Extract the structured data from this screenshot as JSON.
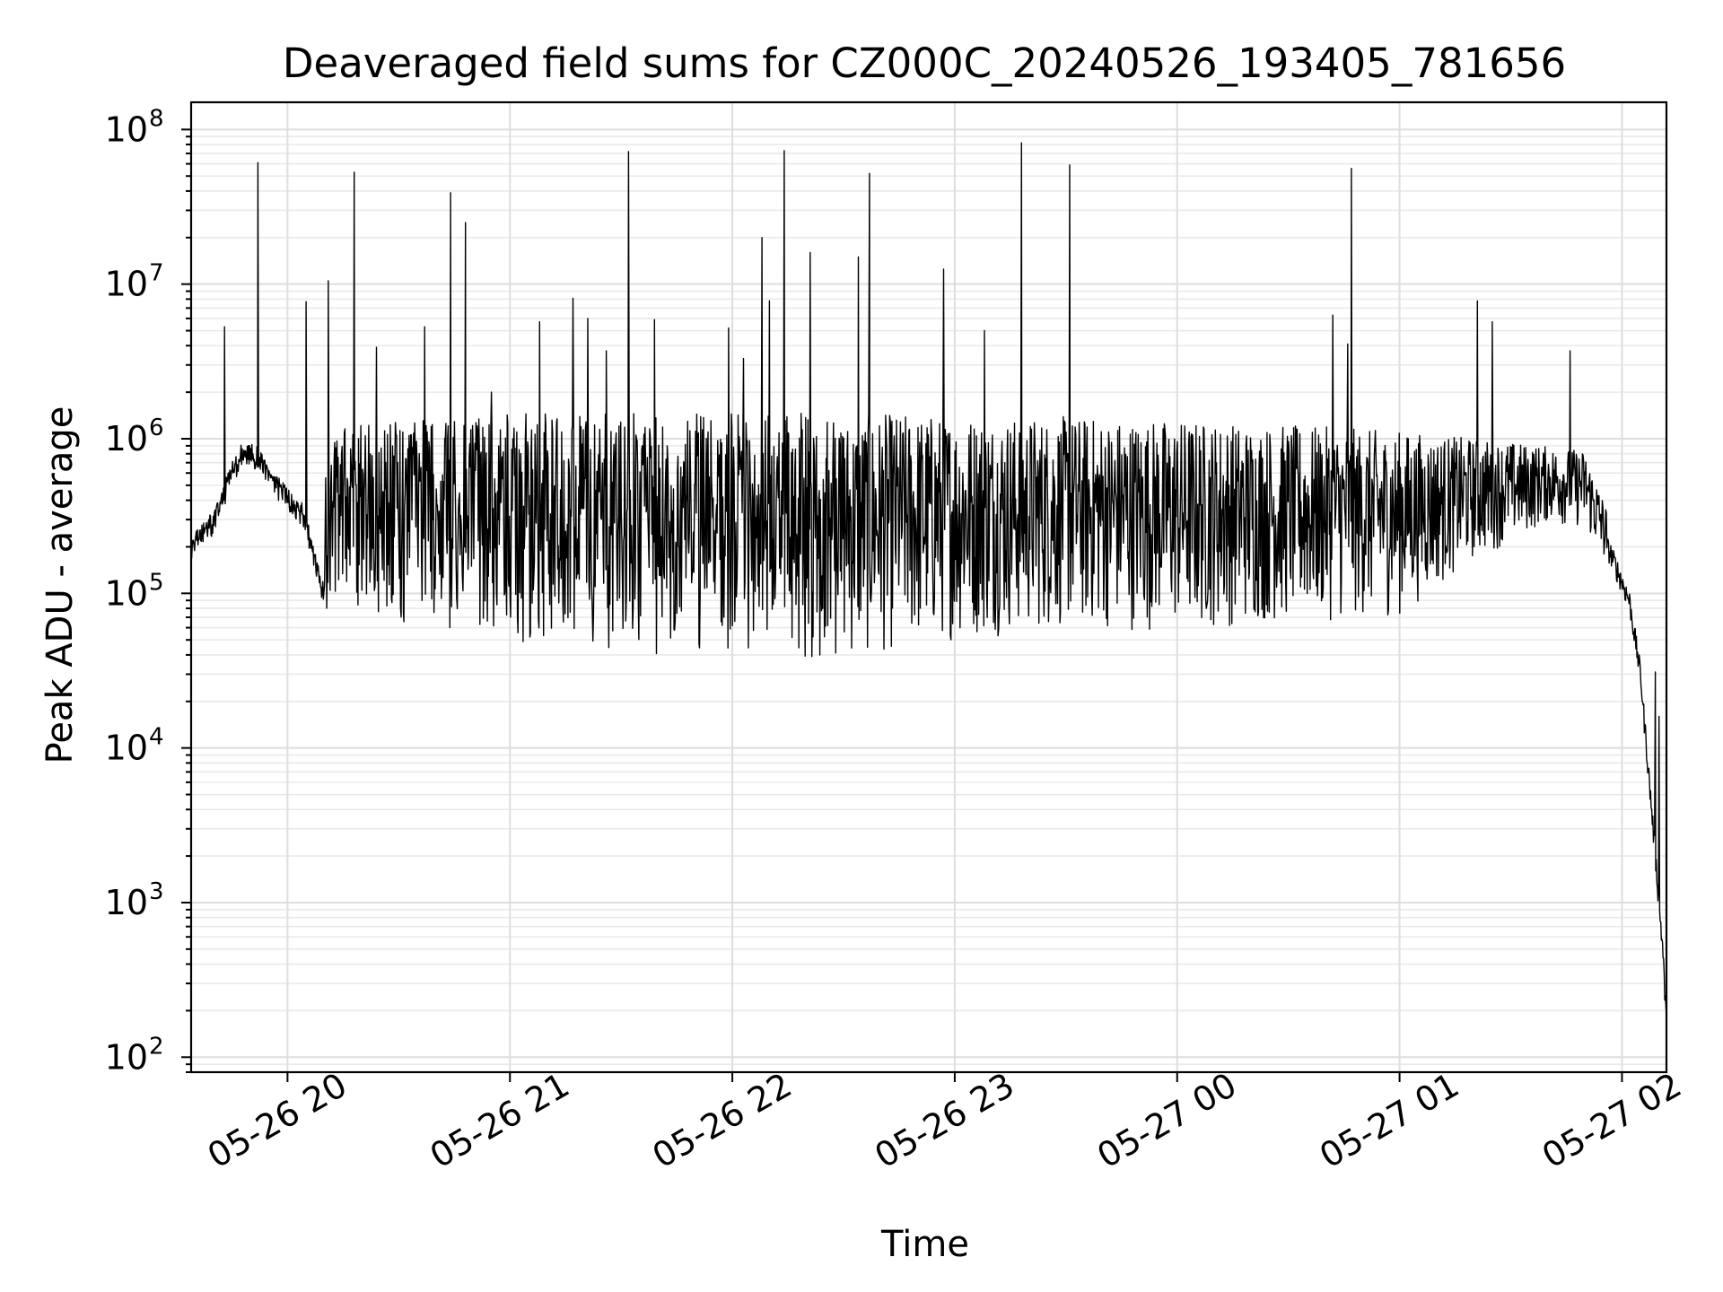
{
  "chart_data": {
    "type": "line",
    "title": "Deaveraged field sums for CZ000C_20240526_193405_781656",
    "xlabel": "Time",
    "ylabel": "Peak ADU - average",
    "yscale": "log",
    "grid": true,
    "color": "#000000",
    "xlim": [
      "2024-05-26 19:34",
      "2024-05-27 02:12"
    ],
    "ylim": [
      80,
      150000000
    ],
    "x_ticks": [
      {
        "value": "2024-05-26 20:00",
        "label": "05-26 20"
      },
      {
        "value": "2024-05-26 21:00",
        "label": "05-26 21"
      },
      {
        "value": "2024-05-26 22:00",
        "label": "05-26 22"
      },
      {
        "value": "2024-05-26 23:00",
        "label": "05-26 23"
      },
      {
        "value": "2024-05-27 00:00",
        "label": "05-27 00"
      },
      {
        "value": "2024-05-27 01:00",
        "label": "05-27 01"
      },
      {
        "value": "2024-05-27 02:00",
        "label": "05-27 02"
      }
    ],
    "y_ticks": [
      {
        "value": 100,
        "base": "10",
        "exp": "2"
      },
      {
        "value": 1000,
        "base": "10",
        "exp": "3"
      },
      {
        "value": 10000,
        "base": "10",
        "exp": "4"
      },
      {
        "value": 100000,
        "base": "10",
        "exp": "5"
      },
      {
        "value": 1000000,
        "base": "10",
        "exp": "6"
      },
      {
        "value": 10000000,
        "base": "10",
        "exp": "7"
      },
      {
        "value": 100000000,
        "base": "10",
        "exp": "8"
      }
    ],
    "series": [
      {
        "baseline": [
          [
            "2024-05-26 19:34",
            200000
          ],
          [
            "2024-05-26 19:40",
            290000
          ],
          [
            "2024-05-26 19:45",
            600000
          ],
          [
            "2024-05-26 19:48",
            830000
          ],
          [
            "2024-05-26 19:52",
            760000
          ],
          [
            "2024-05-26 19:56",
            520000
          ],
          [
            "2024-05-26 20:00",
            420000
          ],
          [
            "2024-05-26 20:04",
            330000
          ],
          [
            "2024-05-26 20:06",
            220000
          ],
          [
            "2024-05-26 20:09",
            110000
          ],
          [
            "2024-05-26 20:15",
            95000
          ],
          [
            "2024-05-26 20:30",
            92000
          ],
          [
            "2024-05-26 21:00",
            65000
          ],
          [
            "2024-05-26 21:30",
            60000
          ],
          [
            "2024-05-26 22:00",
            52000
          ],
          [
            "2024-05-26 22:30",
            50000
          ],
          [
            "2024-05-26 23:00",
            70000
          ],
          [
            "2024-05-26 23:30",
            82000
          ],
          [
            "2024-05-27 00:00",
            80000
          ],
          [
            "2024-05-27 00:30",
            90000
          ],
          [
            "2024-05-27 01:00",
            100000
          ],
          [
            "2024-05-27 01:20",
            230000
          ],
          [
            "2024-05-27 01:40",
            400000
          ],
          [
            "2024-05-27 01:50",
            370000
          ],
          [
            "2024-05-27 01:57",
            180000
          ],
          [
            "2024-05-27 02:02",
            90000
          ],
          [
            "2024-05-27 02:05",
            30000
          ],
          [
            "2024-05-27 02:08",
            4000
          ],
          [
            "2024-05-27 02:11",
            500
          ],
          [
            "2024-05-27 02:12",
            160
          ]
        ],
        "upper_envelope": [
          [
            "2024-05-26 19:34",
            210000
          ],
          [
            "2024-05-26 19:45",
            850000
          ],
          [
            "2024-05-26 20:00",
            500000
          ],
          [
            "2024-05-26 20:10",
            1000000
          ],
          [
            "2024-05-26 20:30",
            1200000
          ],
          [
            "2024-05-26 21:00",
            1300000
          ],
          [
            "2024-05-26 22:00",
            1300000
          ],
          [
            "2024-05-26 23:00",
            1300000
          ],
          [
            "2024-05-27 00:00",
            1200000
          ],
          [
            "2024-05-27 01:00",
            1000000
          ],
          [
            "2024-05-27 01:30",
            850000
          ],
          [
            "2024-05-27 01:50",
            750000
          ],
          [
            "2024-05-27 02:00",
            180000
          ],
          [
            "2024-05-27 02:12",
            160
          ]
        ],
        "spikes": [
          [
            "2024-05-26 19:43",
            5300000
          ],
          [
            "2024-05-26 19:52",
            61000000
          ],
          [
            "2024-05-26 20:05",
            7700000
          ],
          [
            "2024-05-26 20:11",
            10500000
          ],
          [
            "2024-05-26 20:18",
            53000000
          ],
          [
            "2024-05-26 20:24",
            3900000
          ],
          [
            "2024-05-26 20:37",
            5300000
          ],
          [
            "2024-05-26 20:44",
            39000000
          ],
          [
            "2024-05-26 20:48",
            25000000
          ],
          [
            "2024-05-26 20:55",
            2000000
          ],
          [
            "2024-05-26 21:08",
            5700000
          ],
          [
            "2024-05-26 21:17",
            8100000
          ],
          [
            "2024-05-26 21:21",
            6000000
          ],
          [
            "2024-05-26 21:26",
            3700000
          ],
          [
            "2024-05-26 21:32",
            72000000
          ],
          [
            "2024-05-26 21:39",
            5900000
          ],
          [
            "2024-05-26 21:59",
            5200000
          ],
          [
            "2024-05-26 22:03",
            3300000
          ],
          [
            "2024-05-26 22:08",
            20000000
          ],
          [
            "2024-05-26 22:10",
            7800000
          ],
          [
            "2024-05-26 22:14",
            73000000
          ],
          [
            "2024-05-26 22:21",
            16000000
          ],
          [
            "2024-05-26 22:34",
            15000000
          ],
          [
            "2024-05-26 22:37",
            52000000
          ],
          [
            "2024-05-26 22:57",
            12500000
          ],
          [
            "2024-05-26 23:08",
            5000000
          ],
          [
            "2024-05-26 23:18",
            82000000
          ],
          [
            "2024-05-26 23:31",
            59000000
          ],
          [
            "2024-05-27 00:42",
            6300000
          ],
          [
            "2024-05-27 00:46",
            4100000
          ],
          [
            "2024-05-27 00:47",
            56000000
          ],
          [
            "2024-05-27 01:21",
            7800000
          ],
          [
            "2024-05-27 01:25",
            5700000
          ],
          [
            "2024-05-27 01:46",
            3700000
          ]
        ],
        "tail_spikes": [
          [
            "2024-05-27 02:09",
            31000
          ],
          [
            "2024-05-27 02:10",
            16000
          ]
        ]
      }
    ]
  }
}
